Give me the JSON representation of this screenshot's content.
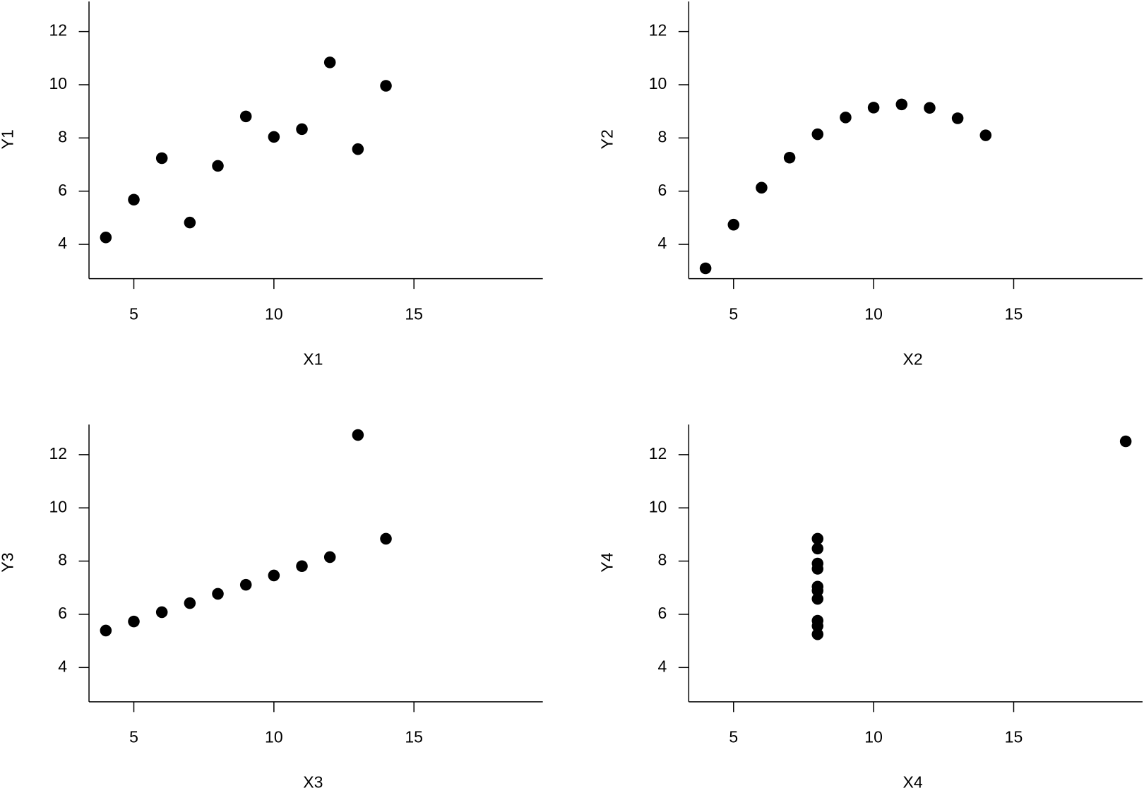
{
  "chart_data": [
    {
      "type": "scatter",
      "x_label": "X1",
      "y_label": "Y1",
      "color": "#000000",
      "x": [
        10,
        8,
        13,
        9,
        11,
        14,
        6,
        4,
        12,
        7,
        5
      ],
      "y": [
        8.04,
        6.95,
        7.58,
        8.81,
        8.33,
        9.96,
        7.24,
        4.26,
        10.84,
        4.82,
        5.68
      ],
      "xlim": [
        3.4,
        19.6
      ],
      "ylim": [
        2.71,
        13.13
      ],
      "xticks": [
        5,
        10,
        15
      ],
      "yticks": [
        4,
        6,
        8,
        10,
        12
      ]
    },
    {
      "type": "scatter",
      "x_label": "X2",
      "y_label": "Y2",
      "color": "#000000",
      "x": [
        10,
        8,
        13,
        9,
        11,
        14,
        6,
        4,
        12,
        7,
        5
      ],
      "y": [
        9.14,
        8.14,
        8.74,
        8.77,
        9.26,
        8.1,
        6.13,
        3.1,
        9.13,
        7.26,
        4.74
      ],
      "xlim": [
        3.4,
        19.6
      ],
      "ylim": [
        2.71,
        13.13
      ],
      "xticks": [
        5,
        10,
        15
      ],
      "yticks": [
        4,
        6,
        8,
        10,
        12
      ]
    },
    {
      "type": "scatter",
      "x_label": "X3",
      "y_label": "Y3",
      "color": "#000000",
      "x": [
        10,
        8,
        13,
        9,
        11,
        14,
        6,
        4,
        12,
        7,
        5
      ],
      "y": [
        7.46,
        6.77,
        12.74,
        7.11,
        7.81,
        8.84,
        6.08,
        5.39,
        8.15,
        6.42,
        5.73
      ],
      "xlim": [
        3.4,
        19.6
      ],
      "ylim": [
        2.71,
        13.13
      ],
      "xticks": [
        5,
        10,
        15
      ],
      "yticks": [
        4,
        6,
        8,
        10,
        12
      ]
    },
    {
      "type": "scatter",
      "x_label": "X4",
      "y_label": "Y4",
      "color": "#000000",
      "x": [
        8,
        8,
        8,
        8,
        8,
        8,
        8,
        19,
        8,
        8,
        8
      ],
      "y": [
        6.58,
        5.76,
        7.71,
        8.84,
        8.47,
        7.04,
        5.25,
        12.5,
        5.56,
        7.91,
        6.89
      ],
      "xlim": [
        3.4,
        19.6
      ],
      "ylim": [
        2.71,
        13.13
      ],
      "xticks": [
        5,
        10,
        15
      ],
      "yticks": [
        4,
        6,
        8,
        10,
        12
      ]
    }
  ]
}
